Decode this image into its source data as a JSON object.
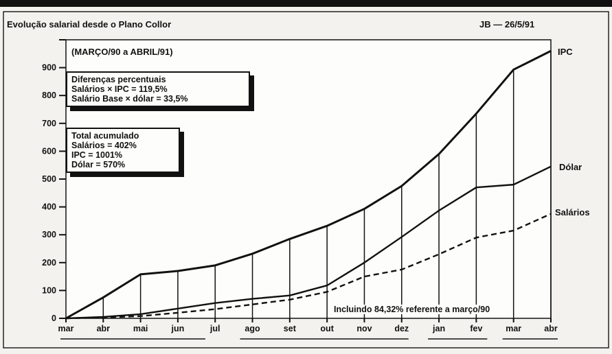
{
  "header": {
    "title": "Evolução salarial desde o Plano Collor",
    "source": "JB — 26/5/91"
  },
  "period_label": "(MARÇO/90 a ABRIL/91)",
  "box_differences": {
    "title": "Diferenças percentuais",
    "lines": [
      "Salários × IPC = 119,5%",
      "Salário Base × dólar = 33,5%"
    ]
  },
  "box_totals": {
    "title": "Total acumulado",
    "lines": [
      "Salários = 402%",
      "IPC = 1001%",
      "Dólar = 570%"
    ]
  },
  "note": "Incluindo 84,32% referente a março/90",
  "chart_data": {
    "type": "line",
    "title": "Evolução salarial desde o Plano Collor",
    "subtitle": "(MARÇO/90 a ABRIL/91)",
    "categories": [
      "mar",
      "abr",
      "mai",
      "jun",
      "jul",
      "ago",
      "set",
      "out",
      "nov",
      "dez",
      "jan",
      "fev",
      "mar",
      "abr"
    ],
    "ylim": [
      0,
      1000
    ],
    "yticks": [
      0,
      100,
      200,
      300,
      400,
      500,
      600,
      700,
      800,
      900
    ],
    "ytick_labels": [
      "0",
      "100",
      "200",
      "300",
      "400",
      "500",
      "600",
      "700",
      "800",
      "900"
    ],
    "grid": false,
    "series": [
      {
        "name": "IPC",
        "style": "solid",
        "values": [
          0,
          75,
          158,
          170,
          190,
          232,
          285,
          332,
          393,
          475,
          590,
          735,
          893,
          960
        ]
      },
      {
        "name": "Dólar",
        "style": "solid",
        "values": [
          0,
          5,
          15,
          35,
          55,
          70,
          82,
          118,
          200,
          292,
          387,
          470,
          480,
          545
        ]
      },
      {
        "name": "Salários",
        "style": "dashed",
        "values": [
          0,
          3,
          8,
          20,
          33,
          50,
          67,
          95,
          150,
          175,
          230,
          290,
          315,
          375
        ]
      }
    ],
    "colors": {
      "line": "#111111",
      "background": "#f4f2ee",
      "plot_background": "#fdfdfb"
    }
  }
}
